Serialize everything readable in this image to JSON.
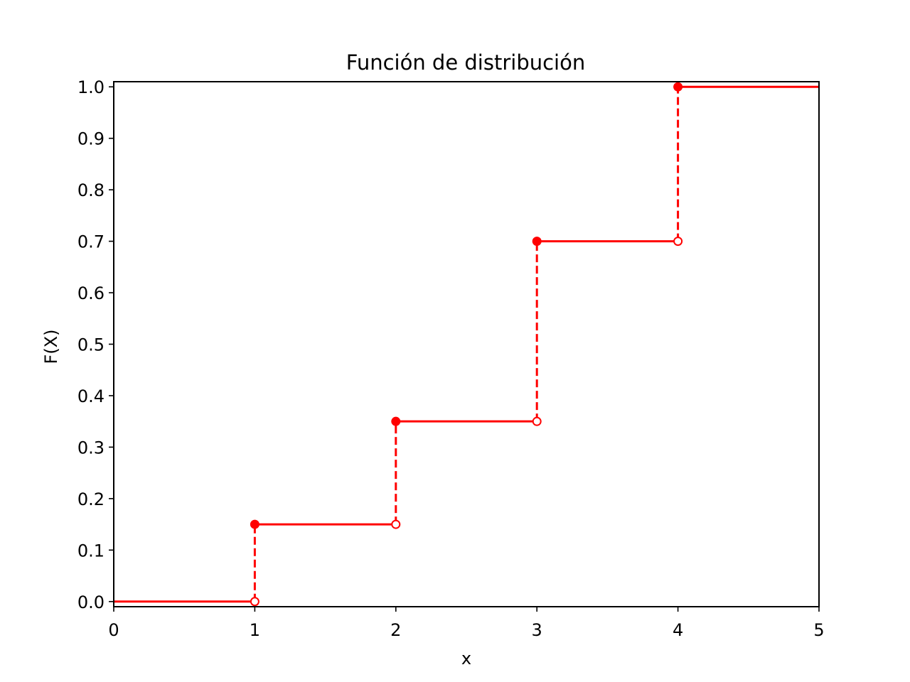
{
  "chart_data": {
    "type": "line",
    "subtype": "step-cdf",
    "title": "Función de distribución",
    "xlabel": "x",
    "ylabel": "F(X)",
    "xlim": [
      0,
      5
    ],
    "ylim": [
      -0.01,
      1.01
    ],
    "xticks": [
      "0",
      "1",
      "2",
      "3",
      "4",
      "5"
    ],
    "yticks": [
      "0.0",
      "0.1",
      "0.2",
      "0.3",
      "0.4",
      "0.5",
      "0.6",
      "0.7",
      "0.8",
      "0.9",
      "1.0"
    ],
    "grid": false,
    "color": "#ff0000",
    "segments": [
      {
        "x0": 0,
        "x1": 1,
        "y": 0.0
      },
      {
        "x0": 1,
        "x1": 2,
        "y": 0.15
      },
      {
        "x0": 2,
        "x1": 3,
        "y": 0.35
      },
      {
        "x0": 3,
        "x1": 4,
        "y": 0.7
      },
      {
        "x0": 4,
        "x1": 5,
        "y": 1.0
      }
    ],
    "jumps": [
      {
        "x": 1,
        "from": 0.0,
        "to": 0.15
      },
      {
        "x": 2,
        "from": 0.15,
        "to": 0.35
      },
      {
        "x": 3,
        "from": 0.35,
        "to": 0.7
      },
      {
        "x": 4,
        "from": 0.7,
        "to": 1.0
      }
    ],
    "closed_points": [
      {
        "x": 1,
        "y": 0.15
      },
      {
        "x": 2,
        "y": 0.35
      },
      {
        "x": 3,
        "y": 0.7
      },
      {
        "x": 4,
        "y": 1.0
      }
    ],
    "open_points": [
      {
        "x": 1,
        "y": 0.0
      },
      {
        "x": 2,
        "y": 0.15
      },
      {
        "x": 3,
        "y": 0.35
      },
      {
        "x": 4,
        "y": 0.7
      }
    ]
  }
}
